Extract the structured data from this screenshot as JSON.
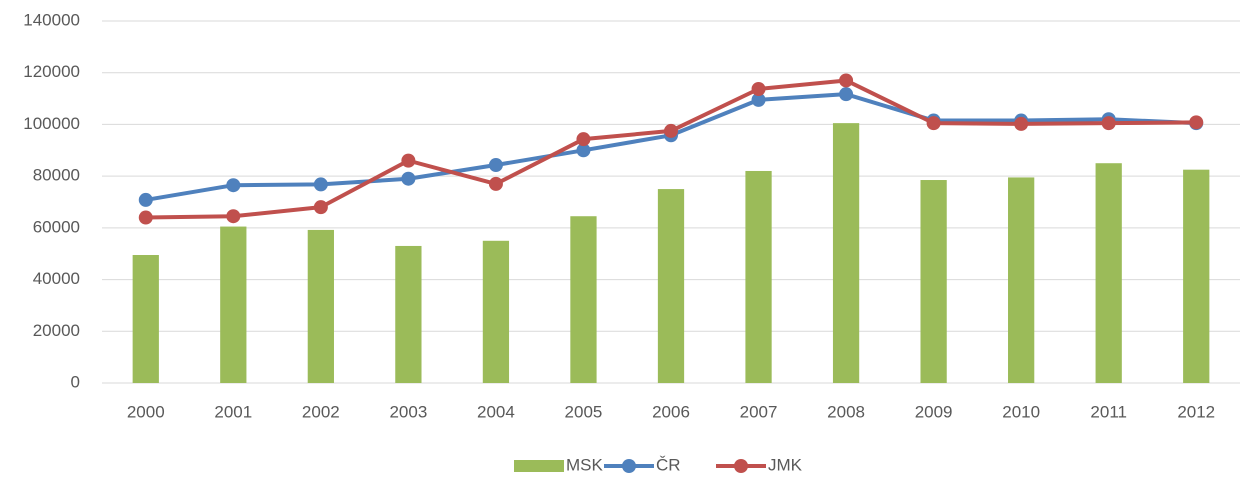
{
  "chart_data": {
    "type": "combo",
    "categories": [
      "2000",
      "2001",
      "2002",
      "2003",
      "2004",
      "2005",
      "2006",
      "2007",
      "2008",
      "2009",
      "2010",
      "2011",
      "2012"
    ],
    "series": [
      {
        "name": "MSK",
        "type": "bar",
        "color": "#9bbb59",
        "values": [
          49500,
          60500,
          59200,
          53000,
          55000,
          64500,
          75000,
          82000,
          100500,
          78500,
          79500,
          85000,
          82500
        ]
      },
      {
        "name": "ČR",
        "type": "line",
        "color": "#4f81bd",
        "values": [
          70800,
          76500,
          76800,
          79000,
          84300,
          90000,
          95800,
          109500,
          111700,
          101500,
          101500,
          102000,
          100500
        ]
      },
      {
        "name": "JMK",
        "type": "line",
        "color": "#c0504d",
        "values": [
          64000,
          64500,
          68000,
          86000,
          77000,
          94300,
          97500,
          113700,
          117000,
          100500,
          100200,
          100500,
          100800
        ]
      }
    ],
    "ylim": [
      0,
      140000
    ],
    "yticks": [
      0,
      20000,
      40000,
      60000,
      80000,
      100000,
      120000,
      140000
    ],
    "grid": true,
    "legend": "bottom"
  }
}
